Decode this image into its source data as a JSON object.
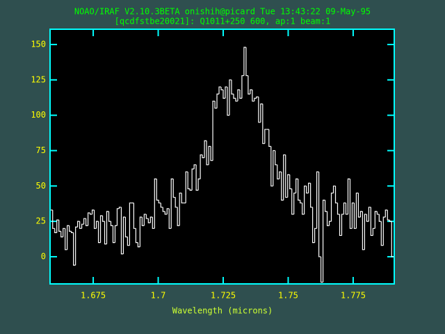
{
  "chart_data": {
    "type": "step",
    "title": "NOAO/IRAF V2.10.3BETA onishih@picard Tue 13:43:22 09-May-95",
    "subtitle": "[qcdfstbe20021]: Q1011+250 600, ap:1 beam:1",
    "x_label": "Wavelength (microns)",
    "xlim": [
      1.6584,
      1.7908
    ],
    "ylim": [
      -19.2,
      160.8
    ],
    "xticks": [
      1.675,
      1.7,
      1.725,
      1.75,
      1.775
    ],
    "yticks": [
      0,
      25,
      50,
      75,
      100,
      125,
      150
    ],
    "x": [
      1.659,
      1.6598,
      1.6606,
      1.6614,
      1.6622,
      1.663,
      1.6638,
      1.6646,
      1.6654,
      1.6662,
      1.667,
      1.6678,
      1.6686,
      1.6694,
      1.6702,
      1.671,
      1.6718,
      1.6726,
      1.6734,
      1.6742,
      1.675,
      1.6758,
      1.6766,
      1.6774,
      1.6782,
      1.679,
      1.6798,
      1.6806,
      1.6814,
      1.6822,
      1.683,
      1.6838,
      1.6846,
      1.6854,
      1.6862,
      1.687,
      1.6878,
      1.6886,
      1.6894,
      1.6902,
      1.691,
      1.6918,
      1.6926,
      1.6934,
      1.6942,
      1.695,
      1.6958,
      1.6966,
      1.6974,
      1.6982,
      1.699,
      1.6998,
      1.7006,
      1.7014,
      1.7022,
      1.703,
      1.7038,
      1.7046,
      1.7054,
      1.7062,
      1.707,
      1.7078,
      1.7086,
      1.7094,
      1.7102,
      1.711,
      1.7118,
      1.7126,
      1.7134,
      1.7142,
      1.715,
      1.7158,
      1.7166,
      1.7174,
      1.7182,
      1.719,
      1.7198,
      1.7206,
      1.7214,
      1.7222,
      1.723,
      1.7238,
      1.7246,
      1.7254,
      1.7262,
      1.727,
      1.7278,
      1.7286,
      1.7294,
      1.7302,
      1.731,
      1.7318,
      1.7326,
      1.7334,
      1.7342,
      1.735,
      1.7358,
      1.7366,
      1.7374,
      1.7382,
      1.739,
      1.7398,
      1.7406,
      1.7414,
      1.7422,
      1.743,
      1.7438,
      1.7446,
      1.7454,
      1.7462,
      1.747,
      1.7478,
      1.7486,
      1.7494,
      1.7502,
      1.751,
      1.7518,
      1.7526,
      1.7534,
      1.7542,
      1.755,
      1.7558,
      1.7566,
      1.7574,
      1.7582,
      1.759,
      1.7598,
      1.7606,
      1.7614,
      1.7622,
      1.763,
      1.7638,
      1.7646,
      1.7654,
      1.7662,
      1.767,
      1.7678,
      1.7686,
      1.7694,
      1.7702,
      1.771,
      1.7718,
      1.7726,
      1.7734,
      1.7742,
      1.775,
      1.7758,
      1.7766,
      1.7774,
      1.7782,
      1.779,
      1.7798,
      1.7806,
      1.7814,
      1.7822,
      1.783,
      1.7838,
      1.7846,
      1.7854,
      1.7862,
      1.787,
      1.7878,
      1.7886,
      1.7894,
      1.7902
    ],
    "values": [
      33,
      20,
      17,
      26,
      18,
      14,
      20,
      5,
      22,
      18,
      17,
      -6,
      21,
      25,
      20,
      23,
      27,
      22,
      31,
      30,
      33,
      20,
      25,
      10,
      29,
      25,
      9,
      32,
      25,
      22,
      10,
      22,
      34,
      35,
      2,
      28,
      14,
      8,
      38,
      38,
      20,
      10,
      7,
      28,
      22,
      30,
      27,
      24,
      28,
      20,
      55,
      40,
      38,
      35,
      32,
      30,
      34,
      20,
      55,
      42,
      35,
      22,
      45,
      38,
      38,
      60,
      48,
      47,
      62,
      65,
      47,
      55,
      72,
      70,
      82,
      65,
      78,
      68,
      110,
      105,
      115,
      120,
      118,
      112,
      120,
      100,
      125,
      115,
      112,
      110,
      118,
      112,
      128,
      148,
      128,
      115,
      118,
      110,
      112,
      113,
      95,
      108,
      80,
      90,
      90,
      78,
      50,
      75,
      65,
      55,
      60,
      40,
      72,
      42,
      58,
      48,
      30,
      45,
      55,
      40,
      38,
      30,
      50,
      45,
      52,
      35,
      10,
      20,
      60,
      0,
      -18,
      40,
      32,
      22,
      25,
      45,
      50,
      38,
      30,
      15,
      30,
      38,
      30,
      55,
      20,
      38,
      20,
      45,
      28,
      32,
      5,
      30,
      25,
      35,
      15,
      20,
      32,
      30,
      25,
      8,
      28,
      33,
      26,
      25,
      0
    ],
    "color": "#ffffff"
  }
}
